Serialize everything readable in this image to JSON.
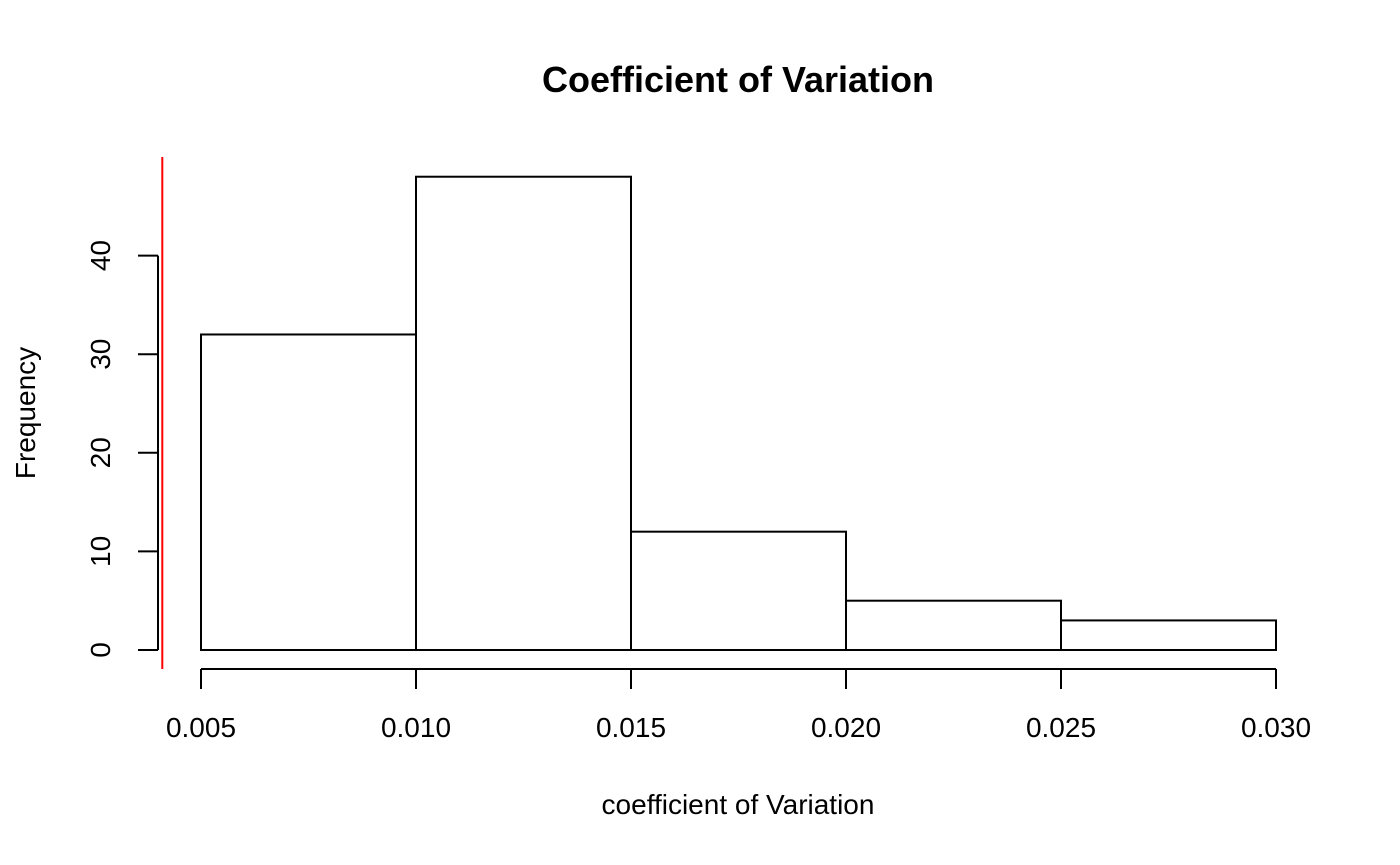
{
  "chart_data": {
    "type": "bar",
    "title": "Coefficient of Variation",
    "xlabel": "coefficient of Variation",
    "ylabel": "Frequency",
    "bins": [
      {
        "x0": 0.005,
        "x1": 0.01,
        "count": 32
      },
      {
        "x0": 0.01,
        "x1": 0.015,
        "count": 48
      },
      {
        "x0": 0.015,
        "x1": 0.02,
        "count": 12
      },
      {
        "x0": 0.02,
        "x1": 0.025,
        "count": 5
      },
      {
        "x0": 0.025,
        "x1": 0.03,
        "count": 3
      }
    ],
    "xlim": [
      0.005,
      0.03
    ],
    "ylim": [
      0,
      48
    ],
    "x_ticks": [
      0.005,
      0.01,
      0.015,
      0.02,
      0.025,
      0.03
    ],
    "x_tick_labels": [
      "0.005",
      "0.010",
      "0.015",
      "0.020",
      "0.025",
      "0.030"
    ],
    "y_ticks": [
      0,
      10,
      20,
      30,
      40
    ],
    "y_tick_labels": [
      "0",
      "10",
      "20",
      "30",
      "40"
    ],
    "reference_line": {
      "x": 0.0041,
      "color": "#ff0000"
    },
    "grid": false,
    "legend": "none"
  }
}
